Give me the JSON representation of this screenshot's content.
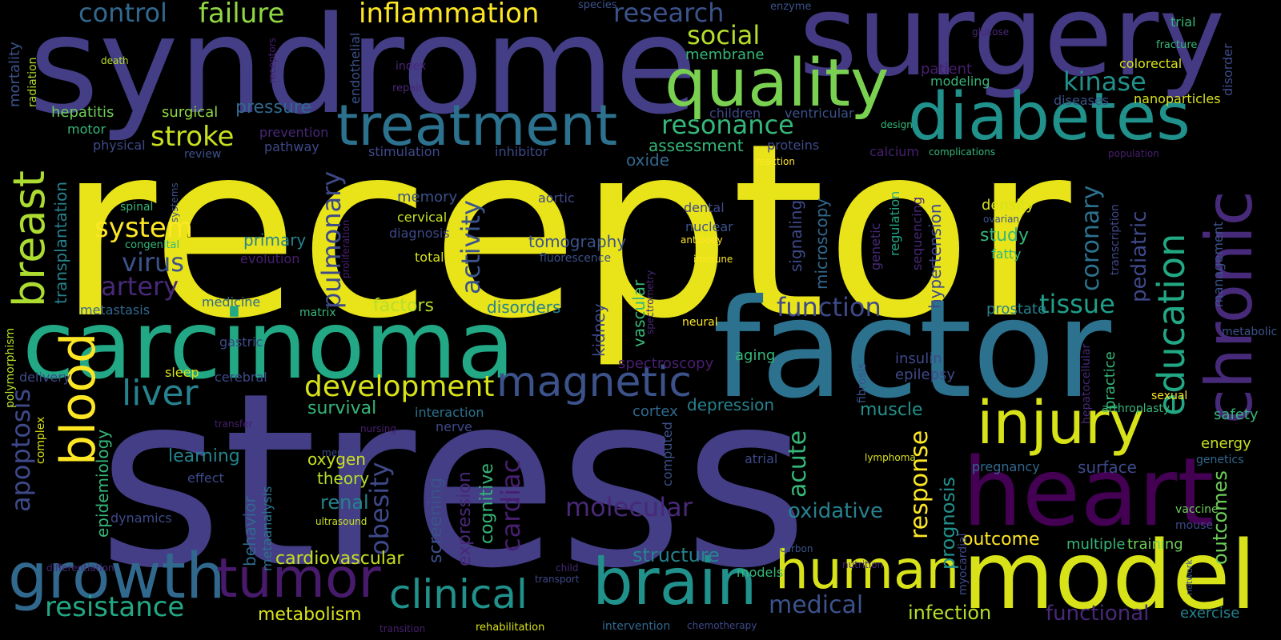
{
  "words": [
    {
      "text": "receptor",
      "color": "#e8e419"
    },
    {
      "text": "stress",
      "color": "#433e85"
    },
    {
      "text": "factor",
      "color": "#2c728e"
    },
    {
      "text": "syndrome",
      "color": "#433e85"
    },
    {
      "text": "surgery",
      "color": "#443983"
    },
    {
      "text": "carcinoma",
      "color": "#22a884"
    },
    {
      "text": "heart",
      "color": "#440154"
    },
    {
      "text": "model",
      "color": "#d8e219"
    },
    {
      "text": "diabetes",
      "color": "#21918c"
    },
    {
      "text": "treatment",
      "color": "#2c728e"
    },
    {
      "text": "quality",
      "color": "#7ad151"
    },
    {
      "text": "brain",
      "color": "#21918c"
    },
    {
      "text": "growth",
      "color": "#31688e"
    },
    {
      "text": "tumor",
      "color": "#481a6c"
    },
    {
      "text": "human",
      "color": "#d8e219"
    },
    {
      "text": "injury",
      "color": "#d8e219"
    },
    {
      "text": "chronic",
      "color": "#472a7a"
    },
    {
      "text": "blood",
      "color": "#fde725"
    },
    {
      "text": "breast",
      "color": "#addc30"
    },
    {
      "text": "magnetic",
      "color": "#3b528b"
    },
    {
      "text": "clinical",
      "color": "#21918c"
    },
    {
      "text": "education",
      "color": "#22a884"
    },
    {
      "text": "liver",
      "color": "#26828e"
    },
    {
      "text": "development",
      "color": "#d8e219"
    },
    {
      "text": "resistance",
      "color": "#22a884"
    },
    {
      "text": "inflammation",
      "color": "#fde725"
    },
    {
      "text": "failure",
      "color": "#90d743"
    },
    {
      "text": "control",
      "color": "#31688e"
    },
    {
      "text": "research",
      "color": "#3b528b"
    },
    {
      "text": "social",
      "color": "#b5de2b"
    },
    {
      "text": "resonance",
      "color": "#35b779"
    },
    {
      "text": "stroke",
      "color": "#c8e020"
    },
    {
      "text": "system",
      "color": "#fde725"
    },
    {
      "text": "virus",
      "color": "#3b528b"
    },
    {
      "text": "artery",
      "color": "#482878"
    },
    {
      "text": "apoptosis",
      "color": "#3e4989"
    },
    {
      "text": "kinase",
      "color": "#21918c"
    },
    {
      "text": "tissue",
      "color": "#1f9e89"
    },
    {
      "text": "function",
      "color": "#3e4989"
    },
    {
      "text": "molecular",
      "color": "#482878"
    },
    {
      "text": "obesity",
      "color": "#3e4989"
    },
    {
      "text": "cardiac",
      "color": "#481f70"
    },
    {
      "text": "activity",
      "color": "#3b528b"
    },
    {
      "text": "pulmonary",
      "color": "#3e4989"
    },
    {
      "text": "coronary",
      "color": "#2c728e"
    },
    {
      "text": "acute",
      "color": "#35b779"
    },
    {
      "text": "response",
      "color": "#fde725"
    },
    {
      "text": "outcomes",
      "color": "#6ece58"
    },
    {
      "text": "outcome",
      "color": "#fde725"
    },
    {
      "text": "pediatric",
      "color": "#3e4989"
    },
    {
      "text": "prognosis",
      "color": "#21918c"
    },
    {
      "text": "medical",
      "color": "#3b528b"
    },
    {
      "text": "infection",
      "color": "#b5de2b"
    },
    {
      "text": "functional",
      "color": "#482878"
    },
    {
      "text": "cardiovascular",
      "color": "#c8e020"
    },
    {
      "text": "metabolism",
      "color": "#d8e219"
    },
    {
      "text": "oxidative",
      "color": "#26828e"
    },
    {
      "text": "structure",
      "color": "#26828e"
    },
    {
      "text": "screening",
      "color": "#3b528b"
    },
    {
      "text": "expression",
      "color": "#482878"
    },
    {
      "text": "cognitive",
      "color": "#35b779"
    },
    {
      "text": "renal",
      "color": "#26828e"
    },
    {
      "text": "theory",
      "color": "#b5de2b"
    },
    {
      "text": "oxygen",
      "color": "#c8e020"
    },
    {
      "text": "learning",
      "color": "#26828e"
    },
    {
      "text": "behavior",
      "color": "#31688e"
    },
    {
      "text": "metaanalysis",
      "color": "#2c728e"
    },
    {
      "text": "epidemiology",
      "color": "#35b779"
    },
    {
      "text": "survival",
      "color": "#35b779"
    },
    {
      "text": "interaction",
      "color": "#2c728e"
    },
    {
      "text": "depression",
      "color": "#26828e"
    },
    {
      "text": "muscle",
      "color": "#21918c"
    },
    {
      "text": "cortex",
      "color": "#31688e"
    },
    {
      "text": "surface",
      "color": "#3e4989"
    },
    {
      "text": "pregnancy",
      "color": "#31688e"
    },
    {
      "text": "training",
      "color": "#6ece58"
    },
    {
      "text": "multiple",
      "color": "#35b779"
    },
    {
      "text": "exercise",
      "color": "#26828e"
    },
    {
      "text": "energy",
      "color": "#c8e020"
    },
    {
      "text": "safety",
      "color": "#35b779"
    },
    {
      "text": "vaccine",
      "color": "#6ece58"
    },
    {
      "text": "mouse",
      "color": "#3e4989"
    },
    {
      "text": "genetics",
      "color": "#31688e"
    },
    {
      "text": "metabolic",
      "color": "#3b528b"
    },
    {
      "text": "sexual",
      "color": "#fde725"
    },
    {
      "text": "arthroplasty",
      "color": "#35b779"
    },
    {
      "text": "hepatocellular",
      "color": "#482878"
    },
    {
      "text": "practice",
      "color": "#35b779"
    },
    {
      "text": "prostate",
      "color": "#26828e"
    },
    {
      "text": "insulin",
      "color": "#3e4989"
    },
    {
      "text": "epilepsy",
      "color": "#3e4989"
    },
    {
      "text": "fibrosis",
      "color": "#3b528b"
    },
    {
      "text": "aging",
      "color": "#35b779"
    },
    {
      "text": "spectroscopy",
      "color": "#481f70"
    },
    {
      "text": "kidney",
      "color": "#3e4989"
    },
    {
      "text": "vascular",
      "color": "#35b779"
    },
    {
      "text": "disorders",
      "color": "#26828e"
    },
    {
      "text": "factors",
      "color": "#b5de2b"
    },
    {
      "text": "matrix",
      "color": "#35b779"
    },
    {
      "text": "neural",
      "color": "#fde725"
    },
    {
      "text": "spectrometry",
      "color": "#482878"
    },
    {
      "text": "hypertension",
      "color": "#3e4989"
    },
    {
      "text": "sequencing",
      "color": "#482878"
    },
    {
      "text": "regulation",
      "color": "#22a884"
    },
    {
      "text": "genetic",
      "color": "#482878"
    },
    {
      "text": "microscopy",
      "color": "#31688e"
    },
    {
      "text": "signaling",
      "color": "#3e4989"
    },
    {
      "text": "study",
      "color": "#35b779"
    },
    {
      "text": "density",
      "color": "#d8e219"
    },
    {
      "text": "ovarian",
      "color": "#3b528b"
    },
    {
      "text": "fatty",
      "color": "#35b779"
    },
    {
      "text": "transcription",
      "color": "#3e4989"
    },
    {
      "text": "management",
      "color": "#3b528b"
    },
    {
      "text": "memory",
      "color": "#3b528b"
    },
    {
      "text": "cervical",
      "color": "#c8e020"
    },
    {
      "text": "diagnosis",
      "color": "#3e4989"
    },
    {
      "text": "total",
      "color": "#d8e219"
    },
    {
      "text": "primary",
      "color": "#26828e"
    },
    {
      "text": "evolution",
      "color": "#481f70"
    },
    {
      "text": "medicine",
      "color": "#31688e"
    },
    {
      "text": "metastasis",
      "color": "#31688e"
    },
    {
      "text": "transplantation",
      "color": "#26828e"
    },
    {
      "text": "congenital",
      "color": "#35b779"
    },
    {
      "text": "spinal",
      "color": "#35b779"
    },
    {
      "text": "systems",
      "color": "#3b528b"
    },
    {
      "text": "tomography",
      "color": "#3b528b"
    },
    {
      "text": "aortic",
      "color": "#3e4989"
    },
    {
      "text": "fluorescence",
      "color": "#3b528b"
    },
    {
      "text": "dental",
      "color": "#3e4989"
    },
    {
      "text": "nuclear",
      "color": "#3b528b"
    },
    {
      "text": "antibody",
      "color": "#fde725"
    },
    {
      "text": "immune",
      "color": "#fde725"
    },
    {
      "text": "proliferation",
      "color": "#481f70"
    },
    {
      "text": "oxide",
      "color": "#31688e"
    },
    {
      "text": "assessment",
      "color": "#35b779"
    },
    {
      "text": "stimulation",
      "color": "#3e4989"
    },
    {
      "text": "inhibitor",
      "color": "#3e4989"
    },
    {
      "text": "reaction",
      "color": "#fde725"
    },
    {
      "text": "calcium",
      "color": "#481f70"
    },
    {
      "text": "proteins",
      "color": "#3e4989"
    },
    {
      "text": "children",
      "color": "#3e4989"
    },
    {
      "text": "ventricular",
      "color": "#3b528b"
    },
    {
      "text": "complications",
      "color": "#35b779"
    },
    {
      "text": "population",
      "color": "#481f70"
    },
    {
      "text": "design",
      "color": "#35b779"
    },
    {
      "text": "diseases",
      "color": "#3b528b"
    },
    {
      "text": "nanoparticles",
      "color": "#d8e219"
    },
    {
      "text": "disorder",
      "color": "#3e4989"
    },
    {
      "text": "colorectal",
      "color": "#d8e219"
    },
    {
      "text": "modeling",
      "color": "#35b779"
    },
    {
      "text": "patient",
      "color": "#481f70"
    },
    {
      "text": "membrane",
      "color": "#35b779"
    },
    {
      "text": "glucose",
      "color": "#482878"
    },
    {
      "text": "trial",
      "color": "#35b779"
    },
    {
      "text": "fracture",
      "color": "#35b779"
    },
    {
      "text": "enzyme",
      "color": "#3b528b"
    },
    {
      "text": "species",
      "color": "#3b528b"
    },
    {
      "text": "endothelial",
      "color": "#3b528b"
    },
    {
      "text": "receptors",
      "color": "#481f70"
    },
    {
      "text": "repair",
      "color": "#482878"
    },
    {
      "text": "index",
      "color": "#482878"
    },
    {
      "text": "prevention",
      "color": "#482878"
    },
    {
      "text": "pathway",
      "color": "#3e4989"
    },
    {
      "text": "review",
      "color": "#3b528b"
    },
    {
      "text": "physical",
      "color": "#3e4989"
    },
    {
      "text": "motor",
      "color": "#35b779"
    },
    {
      "text": "hepatitis",
      "color": "#6ece58"
    },
    {
      "text": "surgical",
      "color": "#90d743"
    },
    {
      "text": "pressure",
      "color": "#31688e"
    },
    {
      "text": "death",
      "color": "#b5de2b"
    },
    {
      "text": "radiation",
      "color": "#b5de2b"
    },
    {
      "text": "mortality",
      "color": "#3b528b"
    },
    {
      "text": "polymorphism",
      "color": "#b5de2b"
    },
    {
      "text": "delivery",
      "color": "#3e4989"
    },
    {
      "text": "gastric",
      "color": "#3e4989"
    },
    {
      "text": "sleep",
      "color": "#d8e219"
    },
    {
      "text": "cerebral",
      "color": "#3e4989"
    },
    {
      "text": "complex",
      "color": "#d8e219"
    },
    {
      "text": "transfer",
      "color": "#481f70"
    },
    {
      "text": "effect",
      "color": "#3e4989"
    },
    {
      "text": "dynamics",
      "color": "#3e4989"
    },
    {
      "text": "differentiation",
      "color": "#482878"
    },
    {
      "text": "ultrasound",
      "color": "#c8e020"
    },
    {
      "text": "nerve",
      "color": "#3e4989"
    },
    {
      "text": "nursing",
      "color": "#481f70"
    },
    {
      "text": "mental",
      "color": "#3e4989"
    },
    {
      "text": "computed",
      "color": "#3b528b"
    },
    {
      "text": "atrial",
      "color": "#3e4989"
    },
    {
      "text": "lymphoma",
      "color": "#d8e219"
    },
    {
      "text": "myocardial",
      "color": "#3e4989"
    },
    {
      "text": "carbon",
      "color": "#3b528b"
    },
    {
      "text": "nutrition",
      "color": "#482878"
    },
    {
      "text": "network",
      "color": "#3b528b"
    },
    {
      "text": "child",
      "color": "#482878"
    },
    {
      "text": "transport",
      "color": "#3e4989"
    },
    {
      "text": "models",
      "color": "#35b779"
    },
    {
      "text": "chemotherapy",
      "color": "#3e4989"
    },
    {
      "text": "intervention",
      "color": "#31688e"
    },
    {
      "text": "rehabilitation",
      "color": "#d8e219"
    },
    {
      "text": "transition",
      "color": "#481f70"
    }
  ]
}
